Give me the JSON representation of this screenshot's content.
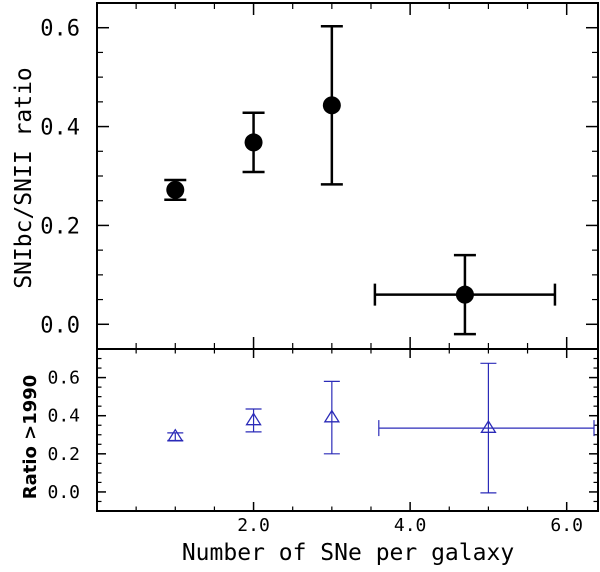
{
  "chart_data": [
    {
      "type": "scatter",
      "panel": "top",
      "xlabel": "Number of SNe per galaxy",
      "ylabel": "SNIbc/SNII ratio",
      "xlim": [
        0.0,
        6.4
      ],
      "ylim": [
        -0.05,
        0.65
      ],
      "x_ticks": [
        2.0,
        4.0,
        6.0
      ],
      "y_ticks": [
        0.0,
        0.2,
        0.4,
        0.6
      ],
      "y_tick_labels": [
        "0.0",
        "0.2",
        "0.4",
        "0.6"
      ],
      "marker": "filled-circle",
      "color": "#000000",
      "points": [
        {
          "x": 1.0,
          "y": 0.272,
          "y_low": 0.252,
          "y_high": 0.292
        },
        {
          "x": 2.0,
          "y": 0.368,
          "y_low": 0.308,
          "y_high": 0.428
        },
        {
          "x": 3.0,
          "y": 0.443,
          "y_low": 0.283,
          "y_high": 0.603
        },
        {
          "x": 4.7,
          "y": 0.06,
          "y_low": -0.02,
          "y_high": 0.14,
          "x_low": 3.55,
          "x_high": 5.85
        }
      ]
    },
    {
      "type": "scatter",
      "panel": "bottom",
      "xlabel": "Number of SNe per galaxy",
      "ylabel": "Ratio >1990",
      "xlim": [
        0.0,
        6.4
      ],
      "ylim": [
        -0.1,
        0.75
      ],
      "x_ticks": [
        2.0,
        4.0,
        6.0
      ],
      "x_tick_labels": [
        "2.0",
        "4.0",
        "6.0"
      ],
      "y_ticks": [
        0.0,
        0.2,
        0.4,
        0.6
      ],
      "y_tick_labels": [
        "0.0",
        "0.2",
        "0.4",
        "0.6"
      ],
      "marker": "open-triangle",
      "color": "#2b2bb8",
      "points": [
        {
          "x": 1.0,
          "y": 0.29,
          "y_low": 0.27,
          "y_high": 0.31
        },
        {
          "x": 2.0,
          "y": 0.375,
          "y_low": 0.315,
          "y_high": 0.435
        },
        {
          "x": 3.0,
          "y": 0.39,
          "y_low": 0.2,
          "y_high": 0.58
        },
        {
          "x": 5.0,
          "y": 0.335,
          "y_low": -0.005,
          "y_high": 0.675,
          "x_low": 3.6,
          "x_high": 6.4
        }
      ]
    }
  ]
}
